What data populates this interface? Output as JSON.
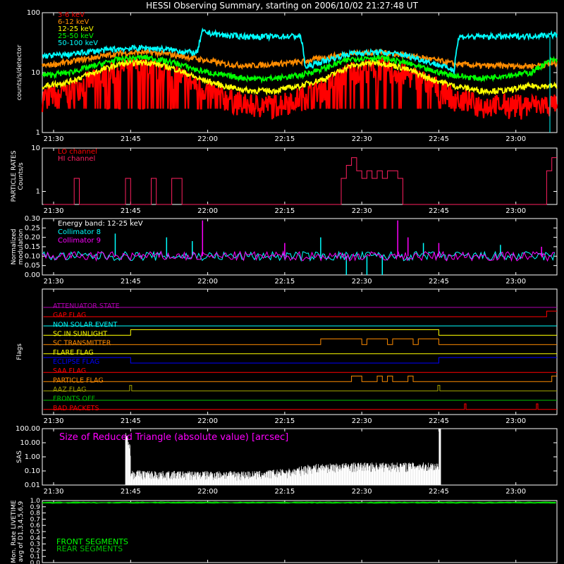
{
  "title": "HESSI Observing Summary, starting on 2006/10/02 21:27:48 UT",
  "colors": {
    "background": "#000000",
    "axis": "#ffffff",
    "red": "#ff0000",
    "orange": "#ff8c00",
    "yellow": "#ffff00",
    "green": "#00ff00",
    "cyan": "#00ffff",
    "magenta": "#ff00ff",
    "blue": "#0000ff",
    "purple": "#b000b0",
    "olive": "#a0a000",
    "darkgreen": "#00c000",
    "crimson": "#ff2060"
  },
  "chart_data": [
    {
      "id": "counts",
      "type": "line",
      "ylabel": "counts/s/detector",
      "yscale": "log",
      "ylim": [
        1,
        100
      ],
      "ytick_labels": [
        "1",
        "10",
        "100"
      ],
      "xlim": [
        "21:27:48",
        "23:08:00"
      ],
      "xtick_labels": [
        "21:30",
        "21:45",
        "22:00",
        "22:15",
        "22:30",
        "22:45",
        "23:00"
      ],
      "series": [
        {
          "name": "3-6 keV",
          "color": "#ff0000",
          "x": [
            "21:28",
            "21:33",
            "21:38",
            "21:43",
            "21:48",
            "21:53",
            "21:58",
            "22:03",
            "22:08",
            "22:13",
            "22:18",
            "22:23",
            "22:28",
            "22:33",
            "22:38",
            "22:43",
            "22:48",
            "22:53",
            "22:58",
            "23:03",
            "23:07"
          ],
          "y": [
            4,
            5,
            8,
            12,
            13,
            10,
            6,
            4,
            3,
            3,
            4,
            6,
            11,
            13,
            10,
            7,
            4,
            3,
            3,
            3,
            3
          ]
        },
        {
          "name": "6-12 keV",
          "color": "#ff8c00",
          "x": [
            "21:28",
            "21:33",
            "21:38",
            "21:43",
            "21:48",
            "21:53",
            "21:58",
            "22:03",
            "22:08",
            "22:13",
            "22:18",
            "22:23",
            "22:28",
            "22:33",
            "22:38",
            "22:43",
            "22:48",
            "22:53",
            "22:58",
            "23:03",
            "23:07"
          ],
          "y": [
            13,
            15,
            18,
            21,
            22,
            20,
            17,
            14,
            13,
            14,
            15,
            18,
            21,
            22,
            20,
            17,
            14,
            13,
            13,
            13,
            14
          ]
        },
        {
          "name": "12-25 keV",
          "color": "#ffff00",
          "x": [
            "21:28",
            "21:33",
            "21:38",
            "21:43",
            "21:48",
            "21:53",
            "21:58",
            "22:03",
            "22:08",
            "22:13",
            "22:18",
            "22:23",
            "22:28",
            "22:33",
            "22:38",
            "22:43",
            "22:48",
            "22:53",
            "22:58",
            "23:03",
            "23:07"
          ],
          "y": [
            6,
            7,
            10,
            14,
            15,
            12,
            8,
            6,
            5,
            5,
            6,
            8,
            13,
            15,
            12,
            8,
            6,
            5,
            5,
            6,
            6
          ]
        },
        {
          "name": "25-50 keV",
          "color": "#00ff00",
          "x": [
            "21:28",
            "21:33",
            "21:38",
            "21:43",
            "21:48",
            "21:53",
            "21:58",
            "22:03",
            "22:08",
            "22:13",
            "22:18",
            "22:23",
            "22:28",
            "22:33",
            "22:38",
            "22:43",
            "22:48",
            "22:53",
            "22:58",
            "23:03",
            "23:07"
          ],
          "y": [
            9,
            10,
            13,
            17,
            18,
            15,
            11,
            9,
            8,
            8,
            9,
            12,
            17,
            18,
            15,
            11,
            9,
            8,
            9,
            10,
            16
          ]
        },
        {
          "name": "50-100 keV",
          "color": "#00ffff",
          "x": [
            "21:28",
            "21:33",
            "21:38",
            "21:43",
            "21:48",
            "21:53",
            "21:58",
            "21:59",
            "22:03",
            "22:08",
            "22:13",
            "22:18",
            "22:19",
            "22:23",
            "22:28",
            "22:33",
            "22:38",
            "22:43",
            "22:48",
            "22:49",
            "22:53",
            "22:58",
            "23:03",
            "23:07"
          ],
          "y": [
            19,
            20,
            23,
            25,
            26,
            24,
            21,
            48,
            42,
            40,
            40,
            41,
            12,
            16,
            21,
            22,
            20,
            15,
            11,
            40,
            40,
            40,
            41,
            43
          ]
        }
      ]
    },
    {
      "id": "particles",
      "type": "line",
      "ylabel": "PARTICLE RATES Counts/s",
      "yscale": "log",
      "ylim": [
        0.5,
        10
      ],
      "ytick_labels": [
        "1",
        "10"
      ],
      "xtick_labels": [
        "21:30",
        "21:45",
        "22:00",
        "22:15",
        "22:30",
        "22:45",
        "23:00"
      ],
      "series": [
        {
          "name": "LO channel",
          "color": "#ff0000",
          "x": [],
          "y": []
        },
        {
          "name": "HI channel",
          "color": "#ff2060",
          "x": [
            "21:28",
            "21:34",
            "21:34",
            "21:35",
            "21:35",
            "21:44",
            "21:44",
            "21:45",
            "21:45",
            "21:49",
            "21:49",
            "21:50",
            "21:50",
            "21:53",
            "21:53",
            "21:55",
            "21:55",
            "22:26",
            "22:26",
            "22:27",
            "22:27",
            "22:28",
            "22:28",
            "22:29",
            "22:29",
            "22:30",
            "22:30",
            "22:31",
            "22:31",
            "22:32",
            "22:32",
            "22:33",
            "22:33",
            "22:34",
            "22:34",
            "22:35",
            "22:35",
            "22:37",
            "22:37",
            "22:38",
            "22:38",
            "23:06",
            "23:06",
            "23:07",
            "23:07",
            "23:08"
          ],
          "y": [
            0.5,
            0.5,
            2,
            2,
            0.5,
            0.5,
            2,
            2,
            0.5,
            0.5,
            2,
            2,
            0.5,
            0.5,
            2,
            2,
            0.5,
            0.5,
            2,
            2,
            4,
            4,
            6,
            6,
            3,
            3,
            2,
            2,
            3,
            3,
            2,
            2,
            3,
            3,
            2,
            2,
            3,
            3,
            2,
            2,
            0.5,
            0.5,
            3,
            3,
            6,
            6
          ]
        }
      ]
    },
    {
      "id": "modulation",
      "type": "line",
      "ylabel": "Normalized modulation",
      "ylim": [
        0,
        0.3
      ],
      "ytick_labels": [
        "0.00",
        "0.05",
        "0.10",
        "0.15",
        "0.20",
        "0.25",
        "0.30"
      ],
      "annotation": "Energy band: 12-25 keV",
      "xtick_labels": [
        "21:30",
        "21:45",
        "22:00",
        "22:15",
        "22:30",
        "22:45",
        "23:00"
      ],
      "series": [
        {
          "name": "Collimator 8",
          "color": "#00ffff",
          "baseline": 0.1,
          "spread": 0.025,
          "spikes": {
            "x": [
              "21:42",
              "21:52",
              "21:57",
              "22:22",
              "22:27",
              "22:31",
              "22:34",
              "22:42",
              "22:57"
            ],
            "y": [
              0.22,
              0.2,
              0.18,
              0.2,
              0.0,
              0.0,
              0.0,
              0.17,
              0.16
            ]
          }
        },
        {
          "name": "Collimator 9",
          "color": "#ff00ff",
          "baseline": 0.1,
          "spread": 0.025,
          "spikes": {
            "x": [
              "21:59",
              "22:15",
              "22:37",
              "22:39",
              "22:45",
              "23:05"
            ],
            "y": [
              0.29,
              0.17,
              0.29,
              0.2,
              0.17,
              0.15
            ]
          }
        }
      ]
    },
    {
      "id": "flags",
      "type": "line",
      "ylabel": "Flags",
      "xtick_labels": [
        "21:30",
        "21:45",
        "22:00",
        "22:15",
        "22:30",
        "22:45",
        "23:00"
      ],
      "series": [
        {
          "name": "ATTENUATOR STATE",
          "color": "#b000b0",
          "x": [
            "21:28",
            "23:08"
          ],
          "y": [
            0,
            0
          ]
        },
        {
          "name": "GAP FLAG",
          "color": "#ff0000",
          "x": [
            "21:28",
            "23:06",
            "23:06",
            "23:08"
          ],
          "y": [
            0,
            0,
            1,
            1
          ]
        },
        {
          "name": "NON SOLAR EVENT",
          "color": "#00ffff",
          "x": [
            "21:28",
            "23:08"
          ],
          "y": [
            0,
            0
          ]
        },
        {
          "name": "SC IN SUNLIGHT",
          "color": "#ffff00",
          "x": [
            "21:28",
            "21:45",
            "21:45",
            "22:45",
            "22:45",
            "23:08"
          ],
          "y": [
            0,
            0,
            1,
            1,
            0,
            0
          ]
        },
        {
          "name": "SC TRANSMITTER",
          "color": "#ff8c00",
          "x": [
            "21:28",
            "22:22",
            "22:22",
            "22:30",
            "22:30",
            "22:31",
            "22:31",
            "22:35",
            "22:35",
            "22:36",
            "22:36",
            "22:40",
            "22:40",
            "22:41",
            "22:41",
            "22:45",
            "22:45",
            "23:08"
          ],
          "y": [
            0,
            0,
            1,
            1,
            0,
            0,
            1,
            1,
            0,
            0,
            1,
            1,
            0,
            0,
            1,
            1,
            0,
            0
          ]
        },
        {
          "name": "FLARE FLAG",
          "color": "#ffff00",
          "x": [
            "21:28",
            "23:08"
          ],
          "y": [
            0,
            0
          ]
        },
        {
          "name": "ECLIPSE FLAG",
          "color": "#0000ff",
          "x": [
            "21:28",
            "21:45",
            "21:45",
            "22:45",
            "22:45",
            "23:08"
          ],
          "y": [
            1,
            1,
            0,
            0,
            1,
            1
          ]
        },
        {
          "name": "SAA FLAG",
          "color": "#ff0000",
          "x": [
            "21:28",
            "23:08"
          ],
          "y": [
            0,
            0
          ]
        },
        {
          "name": "PARTICLE FLAG",
          "color": "#ff8c00",
          "x": [
            "21:28",
            "22:28",
            "22:28",
            "22:30",
            "22:30",
            "22:33",
            "22:33",
            "22:34",
            "22:34",
            "22:35",
            "22:35",
            "22:36",
            "22:36",
            "22:39",
            "22:39",
            "22:40",
            "22:40",
            "23:07",
            "23:07",
            "23:08"
          ],
          "y": [
            0,
            0,
            1,
            1,
            0,
            0,
            1,
            1,
            0,
            0,
            1,
            1,
            0,
            0,
            1,
            1,
            0,
            0,
            1,
            1
          ]
        },
        {
          "name": "AAZ FLAG",
          "color": "#a0a000",
          "x": [
            "21:28",
            "21:44.8",
            "21:44.8",
            "21:45.2",
            "21:45.2",
            "22:44.8",
            "22:44.8",
            "22:45.2",
            "22:45.2",
            "23:08"
          ],
          "y": [
            0,
            0,
            1,
            1,
            0,
            0,
            1,
            1,
            0,
            0
          ]
        },
        {
          "name": "FRONTS OFF",
          "color": "#00c000",
          "x": [
            "21:28",
            "23:08"
          ],
          "y": [
            0,
            0
          ]
        },
        {
          "name": "BAD PACKETS",
          "color": "#ff0000",
          "x": [
            "21:28",
            "22:50",
            "22:50",
            "22:50.3",
            "22:50.3",
            "23:04",
            "23:04",
            "23:04.3",
            "23:04.3",
            "23:08"
          ],
          "y": [
            0,
            0,
            1,
            1,
            0,
            0,
            1,
            1,
            0,
            0
          ]
        }
      ]
    },
    {
      "id": "sas",
      "type": "area",
      "ylabel": "SAS",
      "yscale": "log",
      "ylim": [
        0.01,
        100
      ],
      "ytick_labels": [
        "0.01",
        "0.10",
        "1.00",
        "10.00",
        "100.00"
      ],
      "xtick_labels": [
        "21:30",
        "21:45",
        "22:00",
        "22:15",
        "22:30",
        "22:45",
        "23:00"
      ],
      "series": [
        {
          "name": "Size of Reduced Triangle (absolute value) [arcsec]",
          "color": "#ffffff",
          "x": [
            "21:43",
            "21:44",
            "21:45",
            "21:50",
            "22:00",
            "22:10",
            "22:17",
            "22:20",
            "22:30",
            "22:40",
            "22:45",
            "22:45.5",
            "22:46"
          ],
          "y": [
            0.01,
            30,
            0.06,
            0.05,
            0.05,
            0.05,
            0.08,
            0.15,
            0.2,
            0.2,
            0.2,
            100,
            0.01
          ]
        }
      ]
    },
    {
      "id": "livetime",
      "type": "line",
      "ylabel": "Mon. Rate LIVETIME avg of D1,3,4,5,6,9",
      "ylim": [
        0,
        1
      ],
      "ytick_labels": [
        "0.0",
        "0.1",
        "0.2",
        "0.3",
        "0.4",
        "0.5",
        "0.6",
        "0.7",
        "0.8",
        "0.9",
        "1.0"
      ],
      "xtick_labels": [
        "21:30",
        "21:45",
        "22:00",
        "22:15",
        "22:30",
        "22:45",
        "23:00"
      ],
      "series": [
        {
          "name": "FRONT SEGMENTS",
          "color": "#00ff00",
          "x": [
            "21:28",
            "23:08"
          ],
          "y": [
            0.97,
            0.97
          ]
        },
        {
          "name": "REAR SEGMENTS",
          "color": "#00c000",
          "x": [
            "21:28",
            "23:08"
          ],
          "y": [
            0.96,
            0.96
          ]
        }
      ]
    }
  ]
}
